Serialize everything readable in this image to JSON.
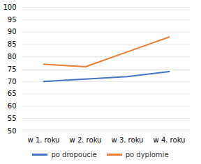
{
  "chart_data": {
    "type": "line",
    "categories": [
      "w 1. roku",
      "w 2. roku",
      "w 3. roku",
      "w 4. roku"
    ],
    "series": [
      {
        "name": "po dropoucie",
        "color": "#4472C4",
        "values": [
          70,
          71,
          72,
          74
        ]
      },
      {
        "name": "po dyplomie",
        "color": "#ED7D31",
        "values": [
          77,
          76,
          82,
          88
        ]
      }
    ],
    "ylim": [
      50,
      100
    ],
    "yticks": [
      50,
      55,
      60,
      65,
      70,
      75,
      80,
      85,
      90,
      95,
      100
    ],
    "grid": true,
    "legend": "bottom"
  }
}
